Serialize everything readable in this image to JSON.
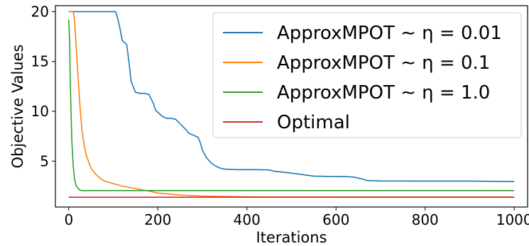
{
  "chart_data": {
    "type": "line",
    "title": "",
    "xlabel": "Iterations",
    "ylabel": "Objective Values",
    "xlim": [
      -30,
      1030
    ],
    "ylim": [
      0.4,
      20.6
    ],
    "xticks": [
      0,
      200,
      400,
      600,
      800,
      1000
    ],
    "yticks": [
      5,
      10,
      15,
      20
    ],
    "grid": false,
    "legend_position": "upper-right",
    "series": [
      {
        "name": "ApproxMPOT ∼ η = 0.01",
        "color": "#1f77b4",
        "x": [
          0,
          20,
          50,
          80,
          105,
          110,
          115,
          120,
          125,
          130,
          135,
          140,
          150,
          160,
          170,
          180,
          190,
          195,
          200,
          210,
          220,
          230,
          240,
          260,
          270,
          280,
          290,
          295,
          300,
          310,
          320,
          330,
          340,
          350,
          380,
          400,
          420,
          450,
          460,
          500,
          550,
          600,
          620,
          640,
          650,
          660,
          670,
          700,
          800,
          900,
          1000
        ],
        "y": [
          20,
          20,
          20,
          20,
          20,
          19.3,
          18.3,
          17.1,
          16.9,
          16.7,
          15,
          13,
          11.9,
          11.8,
          11.8,
          11.7,
          10.8,
          10.1,
          9.9,
          9.5,
          9.3,
          9.3,
          9.2,
          8.3,
          7.8,
          7.6,
          7.4,
          6.9,
          6.1,
          5.3,
          4.8,
          4.5,
          4.3,
          4.2,
          4.15,
          4.15,
          4.15,
          4.12,
          4.0,
          3.8,
          3.5,
          3.45,
          3.45,
          3.4,
          3.3,
          3.2,
          3.05,
          3.02,
          3.0,
          3.0,
          2.95
        ]
      },
      {
        "name": "ApproxMPOT ∼ η = 0.1",
        "color": "#ff7f0e",
        "x": [
          0,
          5,
          10,
          12,
          14,
          16,
          18,
          20,
          23,
          26,
          30,
          35,
          40,
          50,
          60,
          70,
          80,
          100,
          120,
          150,
          180,
          200,
          250,
          300,
          400,
          600,
          800,
          1000
        ],
        "y": [
          20,
          20,
          20,
          19.5,
          18.5,
          17,
          15.5,
          14,
          12,
          10,
          8,
          6.5,
          5.5,
          4.3,
          3.7,
          3.3,
          3.0,
          2.75,
          2.5,
          2.25,
          2.0,
          1.8,
          1.6,
          1.5,
          1.42,
          1.4,
          1.4,
          1.4
        ]
      },
      {
        "name": "ApproxMPOT ∼ η = 1.0",
        "color": "#2ca02c",
        "x": [
          0,
          2,
          3,
          5,
          7,
          10,
          13,
          16,
          20,
          25,
          30,
          40,
          60,
          100,
          200,
          500,
          1000
        ],
        "y": [
          19.2,
          17,
          14,
          10,
          7,
          4.5,
          3.2,
          2.6,
          2.3,
          2.1,
          2.05,
          2.05,
          2.05,
          2.05,
          2.05,
          2.05,
          2.05
        ]
      },
      {
        "name": "Optimal",
        "color": "#d62728",
        "x": [
          0,
          1000
        ],
        "y": [
          1.38,
          1.38
        ]
      }
    ]
  }
}
